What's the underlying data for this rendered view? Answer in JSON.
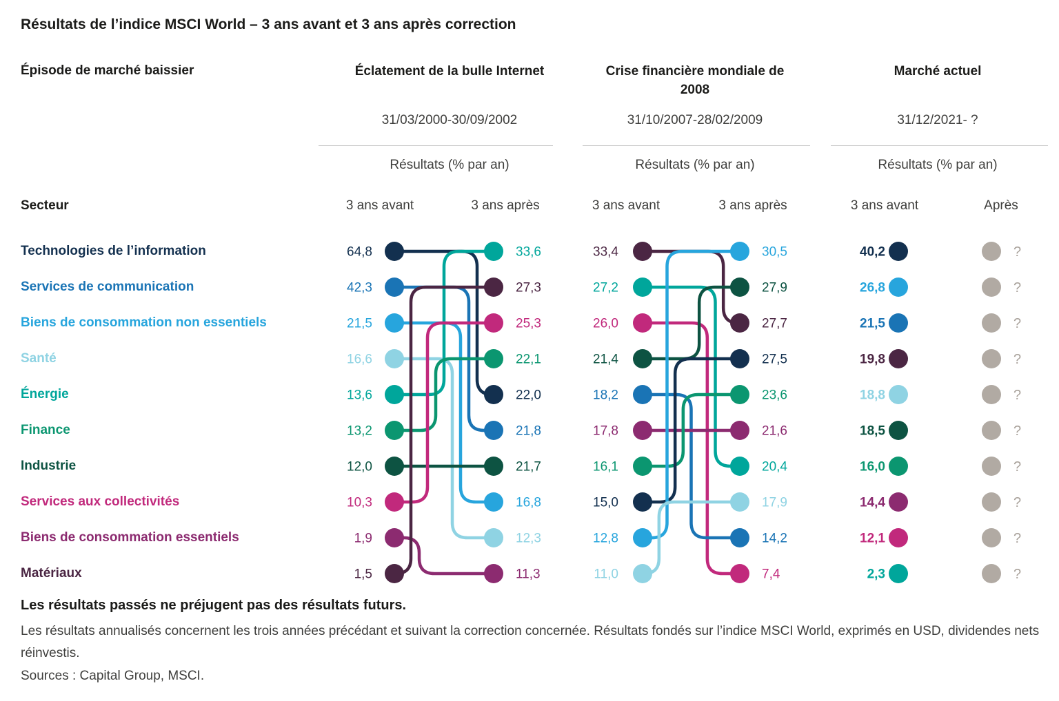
{
  "title": "Résultats de l’indice MSCI World – 3 ans avant et 3 ans après correction",
  "header": {
    "episode_label": "Épisode de marché baissier",
    "sector_label": "Secteur"
  },
  "footer": {
    "bold": "Les résultats passés ne préjugent pas des résultats futurs.",
    "note": "Les résultats annualisés concernent les trois années précédant et suivant la correction concernée. Résultats fondés sur l’indice MSCI World, exprimés en USD, dividendes nets réinvestis.",
    "sources": "Sources : Capital Group, MSCI."
  },
  "chart_data": {
    "type": "slope",
    "unit": "% par an",
    "grid": false,
    "unknown_dot_color": "#B1AAA3",
    "unknown_symbol": "?",
    "unknown_symbol_color": "#A9A29B",
    "sectors": [
      {
        "id": "tech",
        "label": "Technologies de l’information",
        "color": "#13304F"
      },
      {
        "id": "comm",
        "label": "Services de communication",
        "color": "#1A74B5"
      },
      {
        "id": "noness",
        "label": "Biens de consommation non essentiels",
        "color": "#27A5DD"
      },
      {
        "id": "sante",
        "label": "Santé",
        "color": "#8FD3E3"
      },
      {
        "id": "energie",
        "label": "Énergie",
        "color": "#00A69B"
      },
      {
        "id": "finance",
        "label": "Finance",
        "color": "#0B9670"
      },
      {
        "id": "industrie",
        "label": "Industrie",
        "color": "#0D5342"
      },
      {
        "id": "collectivites",
        "label": "Services aux collectivités",
        "color": "#C1297C"
      },
      {
        "id": "essentiels",
        "label": "Biens de consommation essentiels",
        "color": "#8C2B70"
      },
      {
        "id": "materiaux",
        "label": "Matériaux",
        "color": "#4B2643"
      }
    ],
    "episodes": [
      {
        "title": "Éclatement de la bulle Internet",
        "dates": "31/03/2000-30/09/2002",
        "results_label": "Résultats (% par an)",
        "before_label": "3 ans avant",
        "after_label": "3 ans après",
        "before": [
          {
            "sector": "tech",
            "value": "64,8"
          },
          {
            "sector": "comm",
            "value": "42,3"
          },
          {
            "sector": "noness",
            "value": "21,5"
          },
          {
            "sector": "sante",
            "value": "16,6"
          },
          {
            "sector": "energie",
            "value": "13,6"
          },
          {
            "sector": "finance",
            "value": "13,2"
          },
          {
            "sector": "industrie",
            "value": "12,0"
          },
          {
            "sector": "collectivites",
            "value": "10,3"
          },
          {
            "sector": "essentiels",
            "value": "1,9"
          },
          {
            "sector": "materiaux",
            "value": "1,5"
          }
        ],
        "after": [
          {
            "sector": "energie",
            "value": "33,6"
          },
          {
            "sector": "materiaux",
            "value": "27,3"
          },
          {
            "sector": "collectivites",
            "value": "25,3"
          },
          {
            "sector": "finance",
            "value": "22,1"
          },
          {
            "sector": "tech",
            "value": "22,0"
          },
          {
            "sector": "comm",
            "value": "21,8"
          },
          {
            "sector": "industrie",
            "value": "21,7"
          },
          {
            "sector": "noness",
            "value": "16,8"
          },
          {
            "sector": "sante",
            "value": "12,3"
          },
          {
            "sector": "essentiels",
            "value": "11,3"
          }
        ]
      },
      {
        "title": "Crise financière mondiale de 2008",
        "dates": "31/10/2007-28/02/2009",
        "results_label": "Résultats (% par an)",
        "before_label": "3 ans avant",
        "after_label": "3 ans après",
        "before": [
          {
            "sector": "materiaux",
            "value": "33,4"
          },
          {
            "sector": "energie",
            "value": "27,2"
          },
          {
            "sector": "collectivites",
            "value": "26,0"
          },
          {
            "sector": "industrie",
            "value": "21,4"
          },
          {
            "sector": "comm",
            "value": "18,2"
          },
          {
            "sector": "essentiels",
            "value": "17,8"
          },
          {
            "sector": "finance",
            "value": "16,1"
          },
          {
            "sector": "tech",
            "value": "15,0"
          },
          {
            "sector": "noness",
            "value": "12,8"
          },
          {
            "sector": "sante",
            "value": "11,0"
          }
        ],
        "after": [
          {
            "sector": "noness",
            "value": "30,5"
          },
          {
            "sector": "industrie",
            "value": "27,9"
          },
          {
            "sector": "materiaux",
            "value": "27,7"
          },
          {
            "sector": "tech",
            "value": "27,5"
          },
          {
            "sector": "finance",
            "value": "23,6"
          },
          {
            "sector": "essentiels",
            "value": "21,6"
          },
          {
            "sector": "energie",
            "value": "20,4"
          },
          {
            "sector": "sante",
            "value": "17,9"
          },
          {
            "sector": "comm",
            "value": "14,2"
          },
          {
            "sector": "collectivites",
            "value": "7,4"
          }
        ]
      },
      {
        "title": "Marché actuel",
        "dates": "31/12/2021- ?",
        "results_label": "Résultats (% par an)",
        "before_label": "3 ans avant",
        "after_label": "Après",
        "before_bold": true,
        "before": [
          {
            "sector": "tech",
            "value": "40,2"
          },
          {
            "sector": "noness",
            "value": "26,8"
          },
          {
            "sector": "comm",
            "value": "21,5"
          },
          {
            "sector": "materiaux",
            "value": "19,8"
          },
          {
            "sector": "sante",
            "value": "18,8"
          },
          {
            "sector": "industrie",
            "value": "18,5"
          },
          {
            "sector": "finance",
            "value": "16,0"
          },
          {
            "sector": "essentiels",
            "value": "14,4"
          },
          {
            "sector": "collectivites",
            "value": "12,1"
          },
          {
            "sector": "energie",
            "value": "2,3"
          }
        ],
        "after_unknown": {
          "count": 10,
          "symbol": "?"
        }
      }
    ]
  }
}
